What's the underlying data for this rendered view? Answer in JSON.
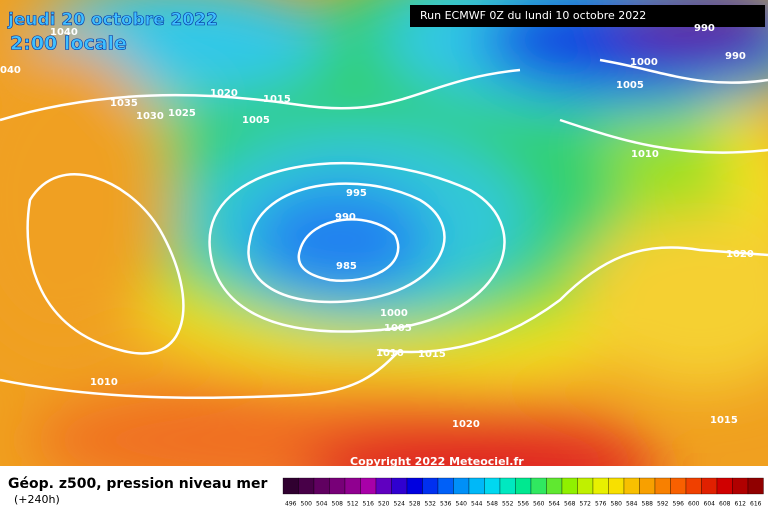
{
  "header": {
    "date": "jeudi 20 octobre 2022",
    "time": "2:00 locale",
    "run": "Run ECMWF 0Z du lundi 10 octobre 2022"
  },
  "isobar_labels": [
    "1040",
    "040",
    "1035",
    "1030",
    "1025",
    "1020",
    "1015",
    "1005",
    "995",
    "990",
    "985",
    "1000",
    "1005",
    "1010",
    "1015",
    "1010",
    "1020",
    "1020",
    "1015",
    "1010",
    "1005",
    "1000",
    "990",
    "990"
  ],
  "copyright": "Copyright 2022 Meteociel.fr",
  "legend": {
    "title": "Géop. z500, pression niveau mer",
    "lead": "(+240h)",
    "scale": [
      496,
      500,
      504,
      508,
      512,
      516,
      520,
      524,
      528,
      532,
      536,
      540,
      544,
      548,
      552,
      556,
      560,
      564,
      568,
      572,
      576,
      580,
      584,
      588,
      592,
      596,
      600,
      604,
      608,
      612,
      616
    ]
  }
}
